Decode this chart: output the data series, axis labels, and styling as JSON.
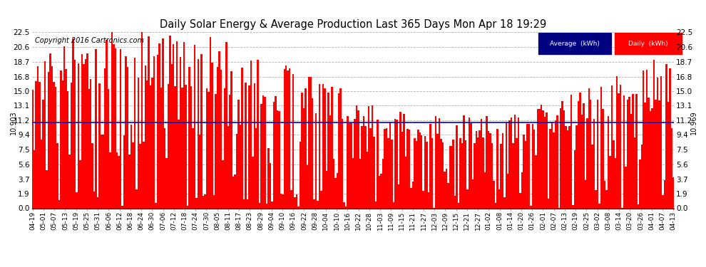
{
  "title": "Daily Solar Energy & Average Production Last 365 Days Mon Apr 18 19:29",
  "copyright": "Copyright 2016 Cartronics.com",
  "average_value": 10.969,
  "left_label": "10.903",
  "right_label": "10.969",
  "yticks": [
    0.0,
    1.9,
    3.7,
    5.6,
    7.5,
    9.4,
    11.2,
    13.1,
    15.0,
    16.8,
    18.7,
    20.6,
    22.5
  ],
  "bar_color": "#ff0000",
  "avg_line_color": "#0000cc",
  "background_color": "#ffffff",
  "grid_color": "#b0b0b0",
  "legend_avg_bg": "#000080",
  "legend_daily_bg": "#ff0000",
  "num_bars": 365,
  "xlabels": [
    "04-19",
    "05-01",
    "05-07",
    "05-13",
    "05-19",
    "05-25",
    "05-31",
    "06-06",
    "06-12",
    "06-18",
    "06-24",
    "06-30",
    "07-06",
    "07-12",
    "07-18",
    "07-24",
    "07-30",
    "08-05",
    "08-11",
    "08-17",
    "08-23",
    "08-29",
    "09-04",
    "09-10",
    "09-16",
    "09-22",
    "09-28",
    "10-04",
    "10-10",
    "10-16",
    "10-22",
    "10-28",
    "11-03",
    "11-09",
    "11-15",
    "11-21",
    "11-27",
    "12-03",
    "12-09",
    "12-15",
    "12-21",
    "12-27",
    "01-02",
    "01-08",
    "01-14",
    "01-20",
    "01-26",
    "02-01",
    "02-07",
    "02-13",
    "02-19",
    "02-25",
    "03-02",
    "03-08",
    "03-14",
    "03-20",
    "03-26",
    "04-01",
    "04-07",
    "04-13"
  ],
  "seed": 123
}
